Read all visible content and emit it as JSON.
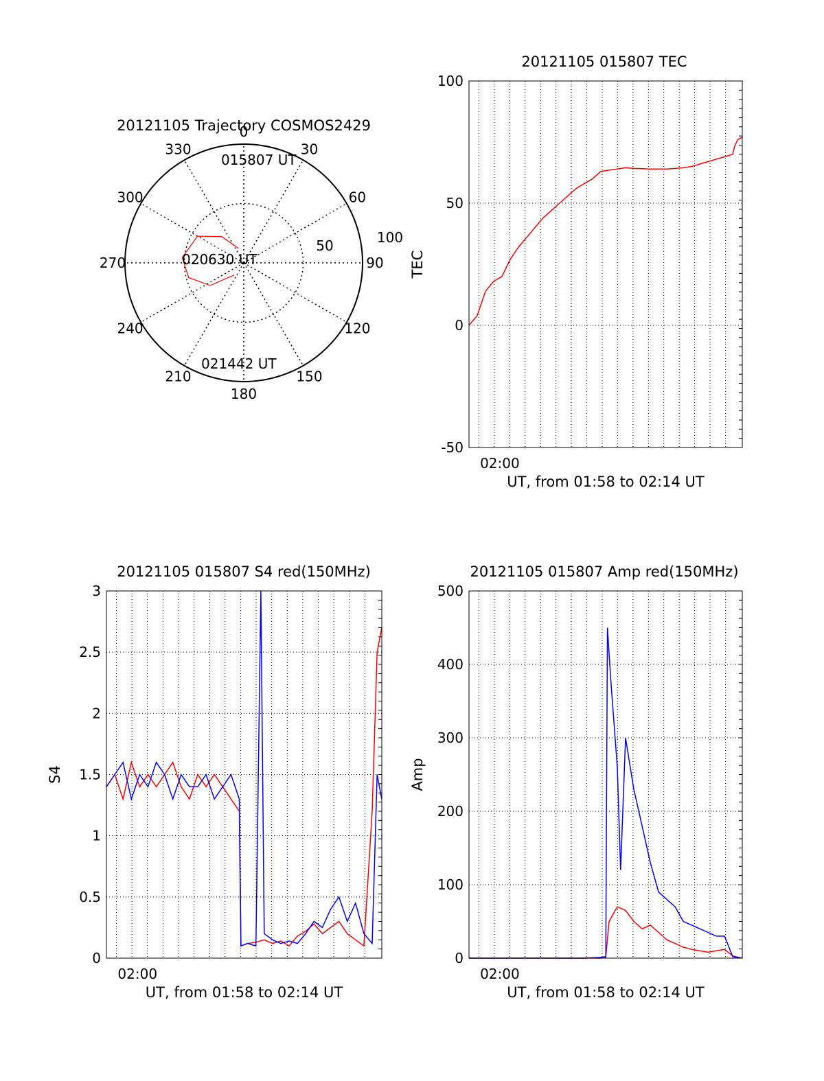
{
  "colors": {
    "red": "#ff0000",
    "blue": "#0000ff",
    "grid": "#000000",
    "background": "#ffffff"
  },
  "chart_data": [
    {
      "type": "polar",
      "title": "20121105 Trajectory COSMOS2429",
      "angle_labels": [
        "0",
        "30",
        "60",
        "90",
        "120",
        "150",
        "180",
        "210",
        "240",
        "270",
        "300",
        "330"
      ],
      "radius_labels": [
        "50",
        "100"
      ],
      "radial_range": [
        0,
        100
      ],
      "grid": true,
      "trajectory_color": "#ff0000",
      "trajectory": [
        {
          "az": 340,
          "elev": 13
        },
        {
          "az": 320,
          "elev": 29
        },
        {
          "az": 300,
          "elev": 45
        },
        {
          "az": 275,
          "elev": 52
        },
        {
          "az": 255,
          "elev": 48
        },
        {
          "az": 236,
          "elev": 34
        },
        {
          "az": 218,
          "elev": 13
        }
      ],
      "annotations": [
        "015807 UT",
        "020630 UT",
        "021442 UT"
      ]
    },
    {
      "type": "line",
      "title": "20121105 015807 TEC",
      "xlabel": "UT, from 01:58 to 02:14 UT",
      "ylabel": "TEC",
      "xlim": [
        0,
        16.58
      ],
      "ylim": [
        -50,
        100
      ],
      "x_tick_label": "02:00",
      "x_tick_at": 1.87,
      "yticks": [
        -50,
        0,
        50,
        100
      ],
      "grid": true,
      "series": [
        {
          "color": "#ff0000",
          "x": [
            0,
            0.5,
            1,
            1.5,
            2,
            2.5,
            3,
            3.5,
            4,
            4.5,
            5,
            5.5,
            6,
            6.5,
            7,
            7.5,
            8,
            8.5,
            9,
            9.5,
            10,
            10.5,
            11,
            11.5,
            12,
            12.5,
            13,
            13.5,
            14,
            14.5,
            15,
            15.5,
            16.0,
            16.1,
            16.3,
            16.58
          ],
          "y": [
            0,
            4,
            14,
            18,
            20,
            27,
            32,
            36,
            40,
            44,
            47,
            50,
            53,
            56,
            58,
            60,
            63,
            63.5,
            64,
            64.5,
            64.2,
            64.1,
            64,
            64,
            64,
            64.2,
            64.5,
            65,
            66,
            67,
            68,
            69,
            70,
            73,
            76,
            77
          ]
        }
      ]
    },
    {
      "type": "line",
      "title": "20121105 015807 S4 red(150MHz)",
      "xlabel": "UT, from 01:58 to 02:14 UT",
      "ylabel": "S4",
      "xlim": [
        0,
        16.58
      ],
      "ylim": [
        0,
        3
      ],
      "x_tick_label": "02:00",
      "x_tick_at": 1.87,
      "yticks": [
        0,
        0.5,
        1,
        1.5,
        2,
        2.5,
        3
      ],
      "ytick_labels": [
        "0",
        "0.5",
        "1",
        "1.5",
        "2",
        "2.5",
        "3"
      ],
      "grid": true,
      "series": [
        {
          "color": "#ff0000",
          "x": [
            0,
            0.5,
            1,
            1.5,
            2,
            2.5,
            3,
            3.5,
            4,
            4.5,
            5,
            5.5,
            6,
            6.5,
            7,
            7.5,
            8,
            8.1,
            8.5,
            9,
            9.5,
            10,
            10.5,
            11,
            11.5,
            12,
            12.5,
            13,
            13.5,
            14,
            14.5,
            15,
            15.5,
            16,
            16.3,
            16.58
          ],
          "y": [
            1.4,
            1.5,
            1.3,
            1.6,
            1.4,
            1.5,
            1.4,
            1.5,
            1.6,
            1.4,
            1.3,
            1.5,
            1.4,
            1.5,
            1.4,
            1.3,
            1.2,
            0.1,
            0.12,
            0.13,
            0.15,
            0.12,
            0.14,
            0.1,
            0.18,
            0.22,
            0.28,
            0.2,
            0.25,
            0.3,
            0.2,
            0.15,
            0.1,
            1.2,
            2.5,
            2.7
          ]
        },
        {
          "color": "#0000ff",
          "x": [
            0,
            0.5,
            1,
            1.5,
            2,
            2.5,
            3,
            3.5,
            4,
            4.5,
            5,
            5.5,
            6,
            6.5,
            7,
            7.5,
            8,
            8.1,
            8.5,
            9,
            9.3,
            9.5,
            10,
            10.5,
            11,
            11.5,
            12,
            12.5,
            13,
            13.5,
            14,
            14.5,
            15,
            15.5,
            16,
            16.3,
            16.58
          ],
          "y": [
            1.4,
            1.5,
            1.6,
            1.3,
            1.5,
            1.4,
            1.6,
            1.5,
            1.3,
            1.5,
            1.4,
            1.4,
            1.5,
            1.3,
            1.4,
            1.5,
            1.3,
            0.1,
            0.12,
            0.1,
            3.0,
            0.2,
            0.15,
            0.12,
            0.14,
            0.12,
            0.2,
            0.3,
            0.25,
            0.4,
            0.5,
            0.3,
            0.45,
            0.2,
            0.12,
            1.5,
            1.3
          ]
        }
      ]
    },
    {
      "type": "line",
      "title": "20121105 015807 Amp red(150MHz)",
      "xlabel": "UT, from 01:58 to 02:14 UT",
      "ylabel": "Amp",
      "xlim": [
        0,
        16.58
      ],
      "ylim": [
        0,
        500
      ],
      "x_tick_label": "02:00",
      "x_tick_at": 1.87,
      "yticks": [
        0,
        100,
        200,
        300,
        400,
        500
      ],
      "grid": true,
      "series": [
        {
          "color": "#ff0000",
          "x": [
            0,
            1,
            2,
            3,
            4,
            5,
            6,
            7,
            8,
            8.3,
            8.5,
            9,
            9.5,
            10,
            10.5,
            11,
            11.5,
            12,
            12.5,
            13,
            13.5,
            14,
            14.5,
            15,
            15.5,
            16,
            16.58
          ],
          "y": [
            0,
            0,
            0,
            0,
            0,
            0,
            0,
            0,
            0,
            1,
            50,
            70,
            65,
            50,
            40,
            45,
            35,
            25,
            20,
            15,
            12,
            10,
            8,
            10,
            12,
            3,
            0
          ]
        },
        {
          "color": "#0000ff",
          "x": [
            0,
            1,
            2,
            3,
            4,
            5,
            6,
            7,
            8,
            8.3,
            8.4,
            8.6,
            8.8,
            9,
            9.2,
            9.5,
            10,
            10.5,
            11,
            11.5,
            12,
            12.5,
            13,
            13.5,
            14,
            14.5,
            15,
            15.5,
            16,
            16.58
          ],
          "y": [
            0,
            0,
            0,
            0,
            0,
            0,
            0,
            0,
            1,
            2,
            450,
            380,
            320,
            260,
            120,
            300,
            230,
            180,
            130,
            90,
            80,
            70,
            50,
            45,
            40,
            35,
            30,
            30,
            2,
            0
          ]
        }
      ]
    }
  ]
}
